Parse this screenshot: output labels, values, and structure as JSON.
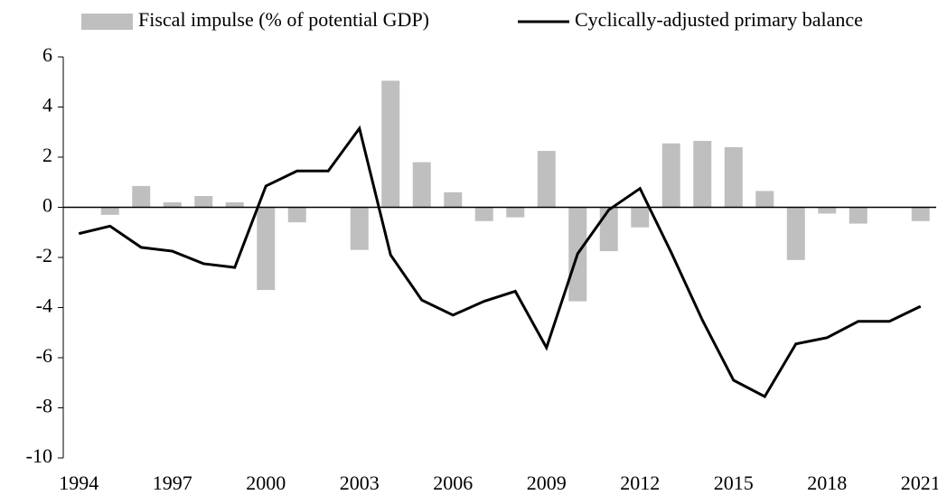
{
  "chart_data": {
    "type": "bar-line",
    "categories": [
      "1994",
      null,
      null,
      "1997",
      null,
      null,
      "2000",
      null,
      null,
      "2003",
      null,
      null,
      "2006",
      null,
      null,
      "2009",
      null,
      null,
      "2012",
      null,
      null,
      "2015",
      null,
      null,
      "2018",
      null,
      null,
      "2021"
    ],
    "series": [
      {
        "name": "Fiscal impulse (% of potential GDP)",
        "type": "bar",
        "color": "#bfbfbf",
        "values": [
          null,
          -0.3,
          0.85,
          0.2,
          0.45,
          0.2,
          -3.3,
          -0.6,
          0,
          -1.7,
          5.05,
          1.8,
          0.6,
          -0.55,
          -0.4,
          2.25,
          -3.75,
          -1.75,
          -0.8,
          2.55,
          2.65,
          2.4,
          0.65,
          -2.1,
          -0.25,
          -0.65,
          0,
          -0.55
        ]
      },
      {
        "name": "Cyclically-adjusted primary balance",
        "type": "line",
        "color": "#000000",
        "values": [
          -1.05,
          -0.75,
          -1.6,
          -1.75,
          -2.25,
          -2.4,
          0.85,
          1.45,
          1.45,
          3.15,
          -1.9,
          -3.7,
          -4.3,
          -3.75,
          -3.35,
          -5.6,
          -1.85,
          -0.1,
          0.75,
          -1.8,
          -4.5,
          -6.9,
          -7.55,
          -5.45,
          -5.2,
          -4.55,
          -4.55,
          -3.95
        ]
      }
    ],
    "ylim": [
      -10,
      6
    ],
    "yticks": [
      -10,
      -8,
      -6,
      -4,
      -2,
      0,
      2,
      4,
      6
    ]
  }
}
